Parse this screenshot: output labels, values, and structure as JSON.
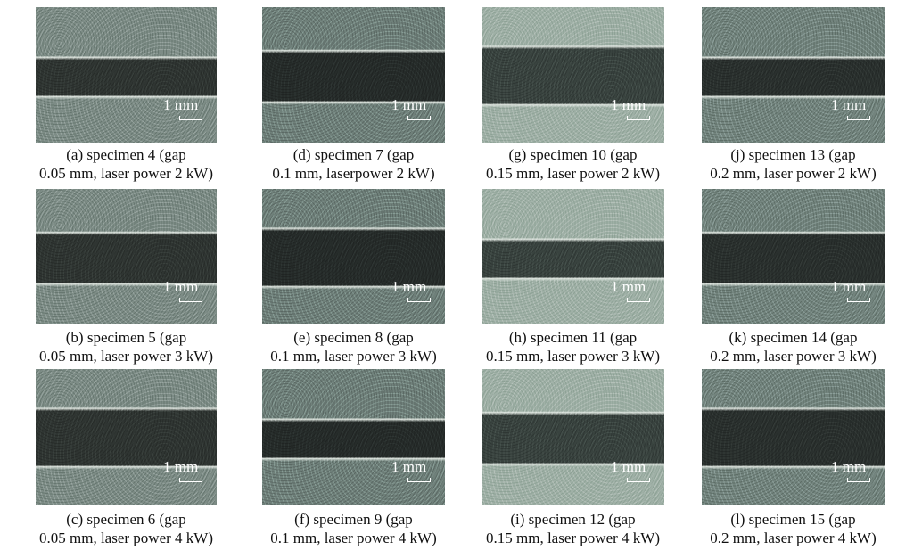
{
  "figure": {
    "panels": [
      {
        "caption": [
          "(a) specimen 4 (gap",
          "0.05 mm, laser power 2 kW)"
        ],
        "scale": "1 mm"
      },
      {
        "caption": [
          "(b) specimen 5 (gap",
          "0.05 mm, laser power 3 kW)"
        ],
        "scale": "1 mm"
      },
      {
        "caption": [
          "(c) specimen 6 (gap",
          "0.05 mm, laser power 4 kW)"
        ],
        "scale": "1 mm"
      },
      {
        "caption": [
          "(d) specimen 7 (gap",
          "0.1 mm,  laserpower 2 kW)"
        ],
        "scale": "1 mm"
      },
      {
        "caption": [
          "(e) specimen 8 (gap",
          "0.1 mm, laser power 3 kW)"
        ],
        "scale": "1 mm"
      },
      {
        "caption": [
          "(f) specimen 9 (gap",
          "0.1 mm, laser power 4 kW)"
        ],
        "scale": "1 mm"
      },
      {
        "caption": [
          "(g) specimen 10 (gap",
          "0.15 mm, laser power 2 kW)"
        ],
        "scale": "1 mm"
      },
      {
        "caption": [
          "(h) specimen 11 (gap",
          "0.15 mm, laser power 3 kW)"
        ],
        "scale": "1 mm"
      },
      {
        "caption": [
          "(i) specimen 12 (gap",
          "0.15 mm, laser power 4 kW)"
        ],
        "scale": "1 mm"
      },
      {
        "caption": [
          "(j) specimen 13 (gap",
          "0.2 mm, laser power 2 kW)"
        ],
        "scale": "1 mm"
      },
      {
        "caption": [
          "(k) specimen 14 (gap",
          "0.2 mm, laser power 3 kW)"
        ],
        "scale": "1 mm"
      },
      {
        "caption": [
          "(l) specimen 15 (gap",
          "0.2 mm, laser power 4 kW)"
        ],
        "scale": "1 mm"
      }
    ]
  }
}
